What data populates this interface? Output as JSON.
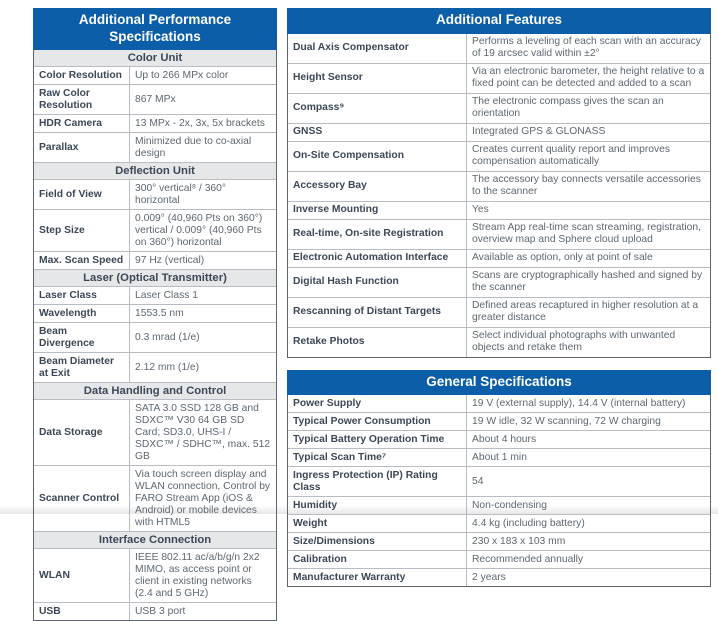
{
  "colors": {
    "header_blue": "#0d5ea9",
    "section_bg": "#e6e7e9",
    "label_color": "#3c4856",
    "value_color": "#5d6872",
    "border_inner": "#b9bdc3",
    "border_outer": "#5c636d"
  },
  "left_table": {
    "title": "Additional Performance Specifications",
    "sections": [
      {
        "header": "Color Unit",
        "rows": [
          {
            "label": "Color Resolution",
            "value": "Up to 266 MPx color"
          },
          {
            "label": "Raw Color Resolution",
            "value": "867 MPx"
          },
          {
            "label": "HDR Camera",
            "value": "13 MPx - 2x, 3x, 5x brackets"
          },
          {
            "label": "Parallax",
            "value": "Minimized due to co-axial design"
          }
        ]
      },
      {
        "header": "Deflection Unit",
        "rows": [
          {
            "label": "Field of View",
            "value": "300° vertical⁸ / 360° horizontal"
          },
          {
            "label": "Step Size",
            "value": "0.009° (40,960 Pts on 360°) vertical / 0.009° (40,960 Pts on 360°) horizontal"
          },
          {
            "label": "Max. Scan Speed",
            "value": "97 Hz (vertical)"
          }
        ]
      },
      {
        "header": "Laser (Optical Transmitter)",
        "rows": [
          {
            "label": "Laser Class",
            "value": "Laser Class 1"
          },
          {
            "label": "Wavelength",
            "value": "1553.5 nm"
          },
          {
            "label": "Beam Divergence",
            "value": "0.3 mrad (1/e)"
          },
          {
            "label": "Beam Diameter at Exit",
            "value": "2.12 mm (1/e)"
          }
        ]
      },
      {
        "header": "Data Handling and Control",
        "rows": [
          {
            "label": "Data Storage",
            "value": "SATA 3.0 SSD 128 GB and SDXC™ V30 64 GB SD Card; SD3.0, UHS-I / SDXC™ / SDHC™, max. 512 GB"
          },
          {
            "label": "Scanner Control",
            "value": "Via touch screen display and WLAN connection, Control by FARO Stream App (iOS & Android) or mobile devices with HTML5"
          }
        ]
      },
      {
        "header": "Interface Connection",
        "rows": [
          {
            "label": "WLAN",
            "value": "IEEE 802.11 ac/a/b/g/n 2x2 MIMO, as access point or client in existing networks (2.4 and 5 GHz)"
          },
          {
            "label": "USB",
            "value": "USB 3 port"
          }
        ]
      }
    ]
  },
  "right_tables": [
    {
      "title": "Additional Features",
      "rows": [
        {
          "label": "Dual Axis Compensator",
          "value": "Performs a leveling of each scan with an accuracy of 19 arcsec valid within ±2°"
        },
        {
          "label": "Height Sensor",
          "value": "Via an electronic barometer, the height relative to a fixed point can be detected and added to a scan"
        },
        {
          "label": "Compass⁹",
          "value": "The electronic compass gives the scan an orientation"
        },
        {
          "label": "GNSS",
          "value": "Integrated GPS & GLONASS"
        },
        {
          "label": "On-Site Compensation",
          "value": "Creates current quality report and improves compensation automatically"
        },
        {
          "label": "Accessory Bay",
          "value": "The accessory bay connects versatile accessories to the scanner"
        },
        {
          "label": "Inverse Mounting",
          "value": "Yes"
        },
        {
          "label": "Real-time, On-site Registration",
          "value": "Stream App real-time scan streaming, registration, overview map and Sphere cloud upload"
        },
        {
          "label": "Electronic Automation Interface",
          "value": "Available as option, only at point of sale"
        },
        {
          "label": "Digital Hash Function",
          "value": "Scans are cryptographically hashed and signed by the scanner"
        },
        {
          "label": "Rescanning of Distant Targets",
          "value": "Defined areas recaptured in higher resolution at a greater distance"
        },
        {
          "label": "Retake Photos",
          "value": "Select individual photographs with unwanted objects and retake them"
        }
      ]
    },
    {
      "title": "General Specifications",
      "rows": [
        {
          "label": "Power Supply",
          "value": "19 V (external supply), 14.4 V (internal battery)"
        },
        {
          "label": "Typical Power Consumption",
          "value": "19 W idle, 32 W scanning, 72 W charging"
        },
        {
          "label": "Typical Battery Operation Time",
          "value": "About 4 hours"
        },
        {
          "label": "Typical Scan Time⁷",
          "value": "About 1 min"
        },
        {
          "label": "Ingress Protection (IP) Rating Class",
          "value": "54"
        },
        {
          "label": "Humidity",
          "value": "Non-condensing"
        },
        {
          "label": "Weight",
          "value": "4.4 kg (including battery)"
        },
        {
          "label": "Size/Dimensions",
          "value": "230 x 183 x 103 mm"
        },
        {
          "label": "Calibration",
          "value": "Recommended annually"
        },
        {
          "label": "Manufacturer Warranty",
          "value": "2 years"
        }
      ]
    }
  ]
}
